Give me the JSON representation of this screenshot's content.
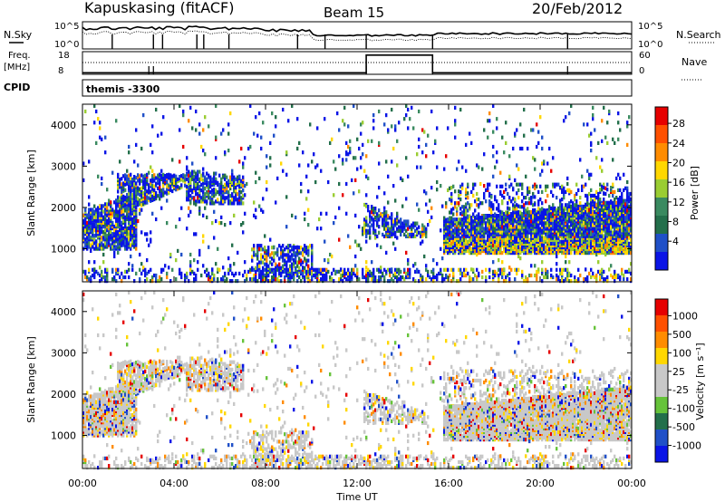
{
  "header": {
    "station": "Kapuskasing (fitACF)",
    "beam": "Beam 15",
    "date": "20/Feb/2012"
  },
  "top_panels": {
    "nsky_label": "N.Sky",
    "nsky_ticks": [
      "10^5",
      "10^0"
    ],
    "nsearch_label": "N.Search",
    "freq_label": "Freq.",
    "freq_unit": "[MHz]",
    "freq_ticks": [
      "18",
      "8"
    ],
    "nave_label": "Nave",
    "nave_ticks": [
      "60",
      "0"
    ],
    "cpid_label": "CPID",
    "cpid_value": "themis -3300"
  },
  "colors": {
    "power_scale": [
      "#0a14e6",
      "#2050c8",
      "#236f4b",
      "#3a8a60",
      "#9acd32",
      "#ffd700",
      "#ff8c00",
      "#ff5000",
      "#e60000"
    ],
    "velocity_scale": [
      "#0a14e6",
      "#2050c8",
      "#236f4b",
      "#66c33a",
      "#c8c8c8",
      "#c8c8c8",
      "#ffd700",
      "#ff8c00",
      "#ff5000",
      "#e60000"
    ]
  },
  "chart_data": [
    {
      "type": "heatmap",
      "name": "power-panel",
      "ylabel": "Slant Range [km]",
      "xlabel": "",
      "yticks": [
        "1000",
        "2000",
        "3000",
        "4000"
      ],
      "xticks": [
        "00:00",
        "04:00",
        "08:00",
        "12:00",
        "16:00",
        "20:00",
        "00:00"
      ],
      "ylim": [
        200,
        4500
      ],
      "xlim_hours": [
        0,
        24
      ],
      "colorbar_label": "Power [dB]",
      "colorbar_ticks": [
        "28",
        "24",
        "20",
        "16",
        "12",
        "8",
        "4"
      ],
      "colorbar_range": [
        0,
        30
      ]
    },
    {
      "type": "heatmap",
      "name": "velocity-panel",
      "ylabel": "Slant Range [km]",
      "xlabel": "Time UT",
      "yticks": [
        "1000",
        "2000",
        "3000",
        "4000"
      ],
      "xticks": [
        "00:00",
        "04:00",
        "08:00",
        "12:00",
        "16:00",
        "20:00",
        "00:00"
      ],
      "ylim": [
        200,
        4500
      ],
      "xlim_hours": [
        0,
        24
      ],
      "colorbar_label": "Velocity [m s⁻¹]",
      "colorbar_ticks": [
        "1000",
        "500",
        "100",
        "25",
        "-25",
        "-100",
        "-500",
        "-1000"
      ]
    }
  ]
}
